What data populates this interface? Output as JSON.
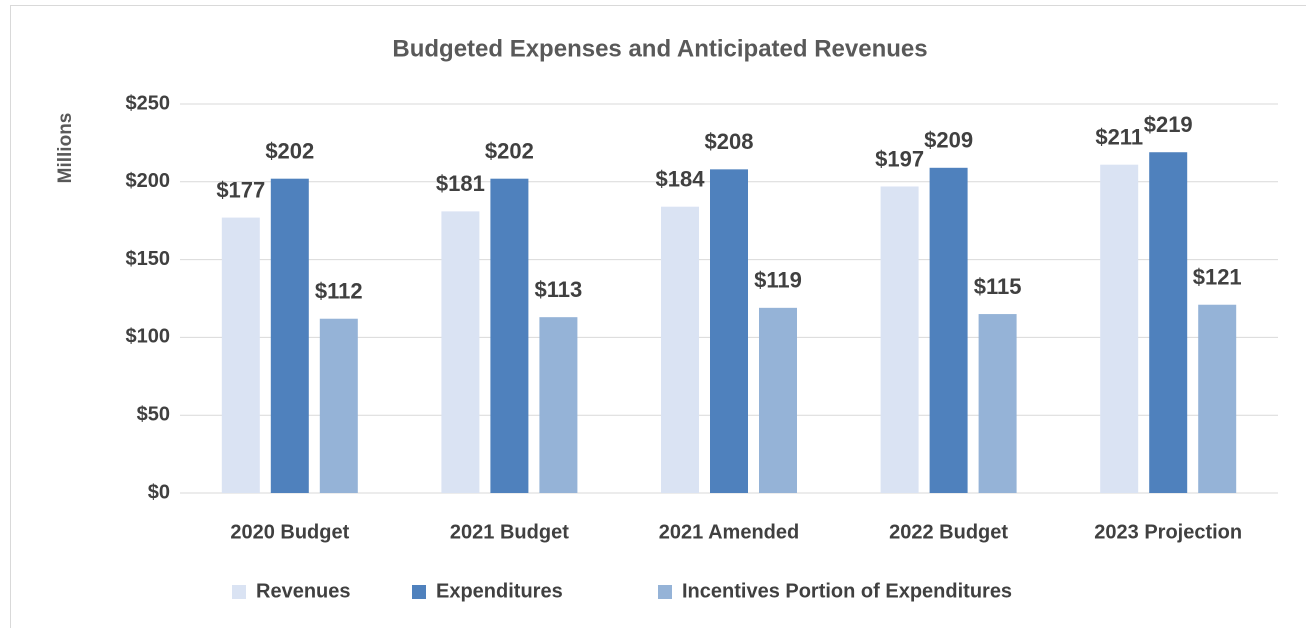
{
  "chart_data": {
    "type": "bar",
    "title": "Budgeted Expenses and Anticipated Revenues",
    "y_label": "Millions",
    "categories": [
      "2020 Budget",
      "2021 Budget",
      "2021 Amended",
      "2022 Budget",
      "2023 Projection"
    ],
    "series": [
      {
        "name": "Revenues",
        "color": "#dae3f3",
        "values": [
          177,
          181,
          184,
          197,
          211
        ],
        "value_labels": [
          "$177",
          "$181",
          "$184",
          "$197",
          "$211"
        ]
      },
      {
        "name": "Expenditures",
        "color": "#4f81bd",
        "values": [
          202,
          202,
          208,
          209,
          219
        ],
        "value_labels": [
          "$202",
          "$202",
          "$208",
          "$209",
          "$219"
        ]
      },
      {
        "name": "Incentives Portion of Expenditures",
        "color": "#95b3d7",
        "values": [
          112,
          113,
          119,
          115,
          121
        ],
        "value_labels": [
          "$112",
          "$113",
          "$119",
          "$115",
          "$121"
        ]
      }
    ],
    "ylim": [
      0,
      250
    ],
    "yticks": [
      {
        "value": 0,
        "label": "$0"
      },
      {
        "value": 50,
        "label": "$50"
      },
      {
        "value": 100,
        "label": "$100"
      },
      {
        "value": 150,
        "label": "$150"
      },
      {
        "value": 200,
        "label": "$200"
      },
      {
        "value": 250,
        "label": "$250"
      }
    ],
    "grid": true,
    "legend": "bottom"
  }
}
